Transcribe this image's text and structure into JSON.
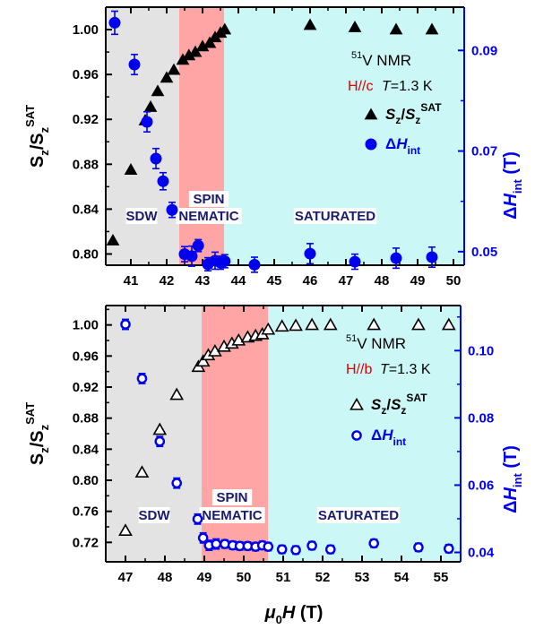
{
  "figure": {
    "xlabel_mu": "μ",
    "xlabel_sub": "0",
    "xlabel_H": "H",
    "xlabel_unit": " (T)"
  },
  "chart_data": [
    {
      "type": "scatter",
      "panel": "top",
      "field_direction": "H//c",
      "temperature_label": "T=1.3 K",
      "nmr_label_sup": "51",
      "nmr_label": "V NMR",
      "regions": [
        {
          "name": "SDW",
          "label_lines": [
            "SDW"
          ],
          "x_range": [
            40.3,
            42.35
          ],
          "color": "#e3e3e3"
        },
        {
          "name": "SPIN NEMATIC",
          "label_lines": [
            "SPIN",
            "NEMATIC"
          ],
          "x_range": [
            42.35,
            43.6
          ],
          "color": "#ffa5a5"
        },
        {
          "name": "SATURATED",
          "label_lines": [
            "SATURATED"
          ],
          "x_range": [
            43.6,
            50.3
          ],
          "color": "#ccf7f7"
        }
      ],
      "xlim": [
        40.3,
        50.3
      ],
      "xticks": [
        41,
        42,
        43,
        44,
        45,
        46,
        47,
        48,
        49,
        50
      ],
      "ylim": [
        0.79,
        1.02
      ],
      "yticks": [
        0.8,
        0.84,
        0.88,
        0.92,
        0.96,
        1.0
      ],
      "ylabel": "Sz/Sz^SAT",
      "y2lim": [
        0.0473,
        0.0986
      ],
      "y2ticks": [
        0.05,
        0.07,
        0.09
      ],
      "y2label": "ΔHint (T)",
      "series": [
        {
          "name": "Sz/Sz^SAT",
          "marker": "filled-triangle",
          "axis": "left",
          "color": "#000000",
          "x": [
            40.5,
            41.0,
            41.4,
            41.55,
            41.75,
            42.0,
            42.2,
            42.45,
            42.62,
            42.8,
            43.0,
            43.2,
            43.35,
            43.5,
            43.62,
            46.0,
            47.25,
            48.4,
            49.4
          ],
          "y": [
            0.812,
            0.875,
            0.919,
            0.931,
            0.945,
            0.957,
            0.964,
            0.973,
            0.977,
            0.98,
            0.985,
            0.988,
            0.993,
            0.997,
            1.0,
            1.004,
            1.002,
            1.0,
            1.0
          ]
        },
        {
          "name": "ΔHint",
          "marker": "filled-circle",
          "axis": "right",
          "color": "#0000ee",
          "x": [
            40.55,
            41.1,
            41.45,
            41.7,
            41.9,
            42.15,
            42.5,
            42.7,
            42.88,
            43.15,
            43.35,
            43.5,
            43.62,
            44.45,
            46.0,
            47.25,
            48.4,
            49.4
          ],
          "y": [
            0.0955,
            0.0872,
            0.0758,
            0.0685,
            0.064,
            0.0583,
            0.0495,
            0.0491,
            0.0512,
            0.0475,
            0.0482,
            0.0478,
            0.0481,
            0.0474,
            0.0496,
            0.048,
            0.0487,
            0.0489
          ],
          "err": [
            0.0023,
            0.002,
            0.002,
            0.002,
            0.0017,
            0.0015,
            0.0015,
            0.002,
            0.0012,
            0.0013,
            0.0017,
            0.0013,
            0.0013,
            0.0015,
            0.002,
            0.0015,
            0.002,
            0.002
          ]
        }
      ]
    },
    {
      "type": "scatter",
      "panel": "bottom",
      "field_direction": "H//b",
      "temperature_label": "T=1.3 K",
      "nmr_label_sup": "51",
      "nmr_label": "V NMR",
      "regions": [
        {
          "name": "SDW",
          "label_lines": [
            "SDW"
          ],
          "x_range": [
            46.5,
            48.93
          ],
          "color": "#e3e3e3"
        },
        {
          "name": "SPIN NEMATIC",
          "label_lines": [
            "SPIN",
            "NEMATIC"
          ],
          "x_range": [
            48.93,
            50.62
          ],
          "color": "#ffa5a5"
        },
        {
          "name": "SATURATED",
          "label_lines": [
            "SATURATED"
          ],
          "x_range": [
            50.62,
            55.5
          ],
          "color": "#ccf7f7"
        }
      ],
      "xlim": [
        46.5,
        55.5
      ],
      "xticks": [
        47,
        48,
        49,
        50,
        51,
        52,
        53,
        54,
        55
      ],
      "ylim": [
        0.695,
        1.025
      ],
      "yticks": [
        0.72,
        0.76,
        0.8,
        0.84,
        0.88,
        0.92,
        0.96,
        1.0
      ],
      "ylabel": "Sz/Sz^SAT",
      "y2lim": [
        0.0372,
        0.1134
      ],
      "y2ticks": [
        0.04,
        0.06,
        0.08,
        0.1
      ],
      "y2label": "ΔHint (T)",
      "series": [
        {
          "name": "Sz/Sz^SAT",
          "marker": "open-triangle",
          "axis": "left",
          "color": "#000000",
          "x": [
            47.0,
            47.42,
            47.87,
            48.3,
            48.85,
            48.97,
            49.1,
            49.27,
            49.5,
            49.7,
            49.87,
            50.1,
            50.3,
            50.47,
            50.62,
            50.97,
            51.32,
            51.73,
            52.2,
            53.3,
            54.43,
            55.2
          ],
          "y": [
            0.735,
            0.81,
            0.865,
            0.91,
            0.946,
            0.953,
            0.961,
            0.966,
            0.972,
            0.976,
            0.98,
            0.984,
            0.986,
            0.988,
            0.994,
            0.998,
            0.999,
            1.0,
            1.0,
            1.0,
            1.0,
            1.0
          ]
        },
        {
          "name": "ΔHint",
          "marker": "open-circle",
          "axis": "right",
          "color": "#0000ee",
          "x": [
            47.0,
            47.42,
            47.87,
            48.3,
            48.83,
            48.97,
            49.12,
            49.3,
            49.52,
            49.72,
            49.9,
            50.1,
            50.3,
            50.47,
            50.62,
            50.97,
            51.32,
            51.73,
            52.2,
            53.3,
            54.43,
            55.2
          ],
          "y": [
            0.1078,
            0.0917,
            0.073,
            0.0606,
            0.0499,
            0.0443,
            0.0421,
            0.0425,
            0.0425,
            0.0421,
            0.0419,
            0.0419,
            0.0417,
            0.0421,
            0.0417,
            0.0409,
            0.0407,
            0.042,
            0.0409,
            0.0427,
            0.0415,
            0.0411
          ],
          "err": [
            0.0015,
            0.0015,
            0.0015,
            0.0015,
            0.0015,
            0.0015,
            0.0015,
            0.0015,
            0.0012,
            0.0012,
            0.0012,
            0.0012,
            0.0012,
            0.0012,
            0.0012,
            0.0012,
            0.0012,
            0.0012,
            0.0012,
            0.0012,
            0.0012,
            0.0012
          ]
        }
      ]
    }
  ]
}
